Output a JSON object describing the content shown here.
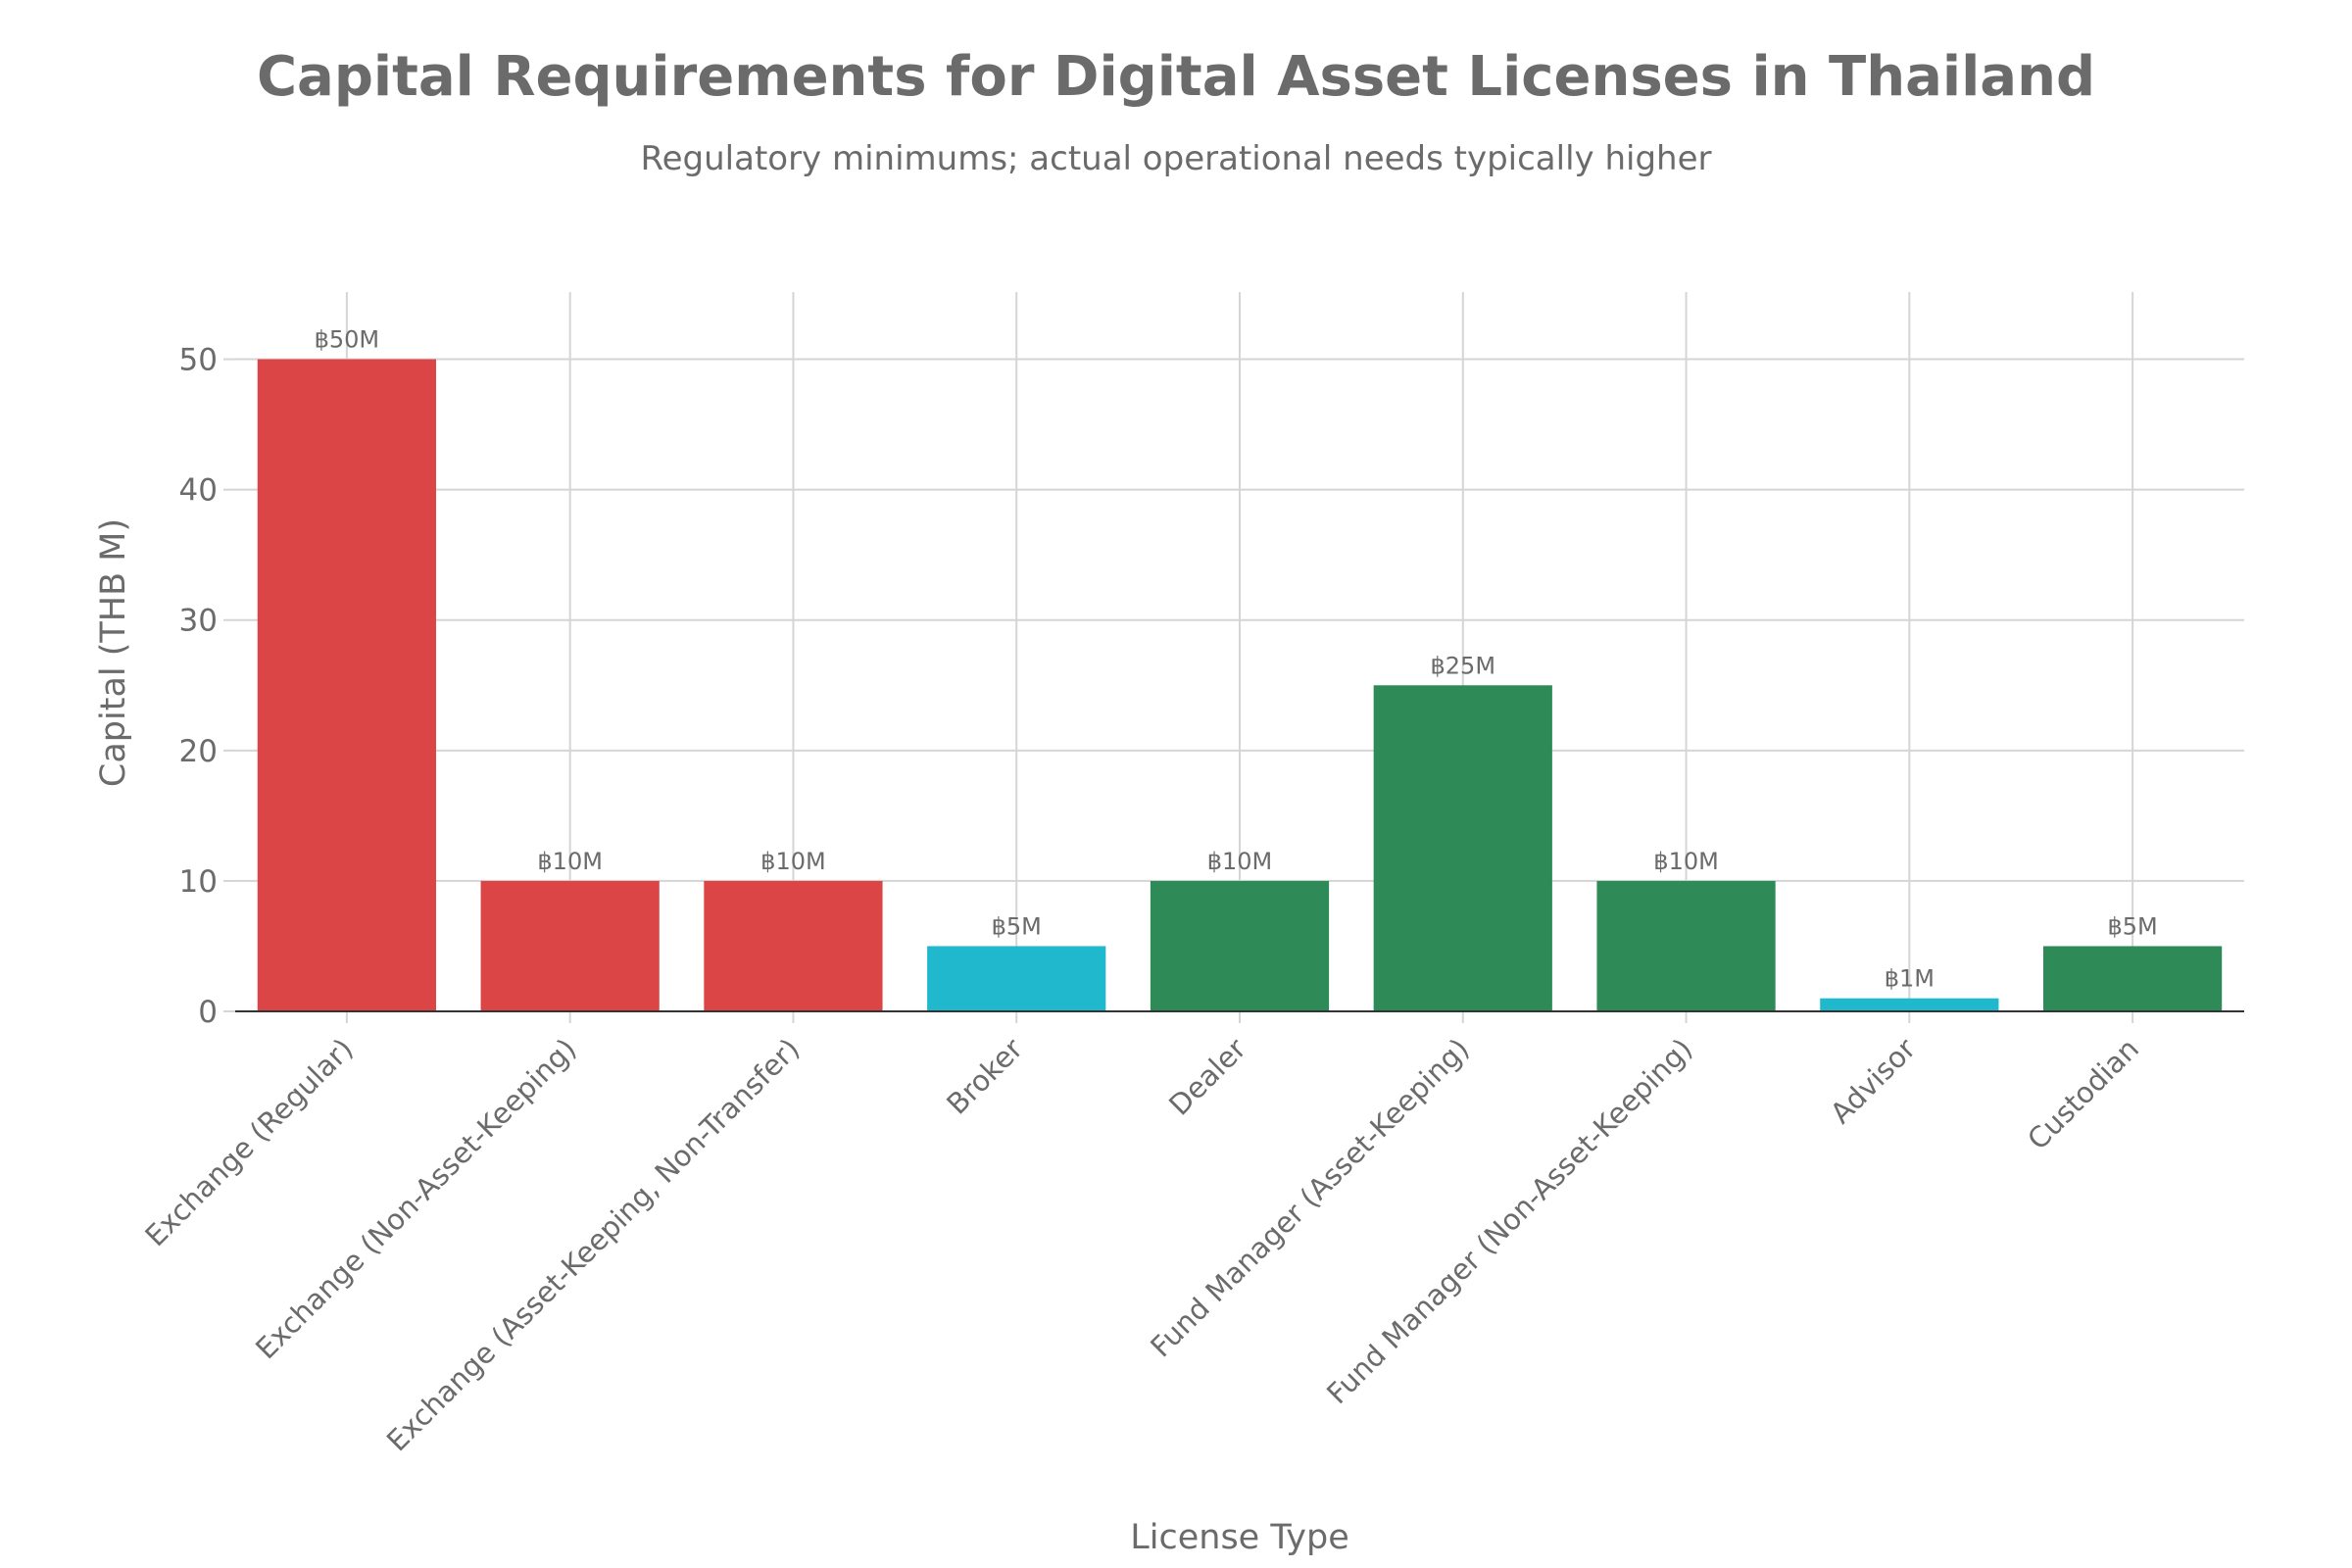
{
  "title": "Capital Requirements for Digital Asset Licenses in Thailand",
  "subtitle": "Regulatory minimums; actual operational needs typically higher",
  "colors": {
    "red": "#DB4545",
    "green": "#2E8B57",
    "teal": "#1FB8CD",
    "grid": "#d5d5d5",
    "axis": "#333333",
    "text": "#6b6b6b"
  },
  "chart_data": {
    "type": "bar",
    "title": "Capital Requirements for Digital Asset Licenses in Thailand",
    "subtitle": "Regulatory minimums; actual operational needs typically higher",
    "xlabel": "License Type",
    "ylabel": "Capital (THB M)",
    "ylim": [
      0,
      55
    ],
    "yticks": [
      0,
      10,
      20,
      30,
      40,
      50
    ],
    "grid": true,
    "categories": [
      "Exchange (Regular)",
      "Exchange (Non-Asset-Keeping)",
      "Exchange (Asset-Keeping, Non-Transfer)",
      "Broker",
      "Dealer",
      "Fund Manager (Asset-Keeping)",
      "Fund Manager (Non-Asset-Keeping)",
      "Advisor",
      "Custodian"
    ],
    "values": [
      50,
      10,
      10,
      5,
      10,
      25,
      10,
      1,
      5
    ],
    "data_labels": [
      "฿50M",
      "฿10M",
      "฿10M",
      "฿5M",
      "฿10M",
      "฿25M",
      "฿10M",
      "฿1M",
      "฿5M"
    ],
    "bar_colors": [
      "#DB4545",
      "#DB4545",
      "#DB4545",
      "#1FB8CD",
      "#2E8B57",
      "#2E8B57",
      "#2E8B57",
      "#1FB8CD",
      "#2E8B57"
    ]
  }
}
